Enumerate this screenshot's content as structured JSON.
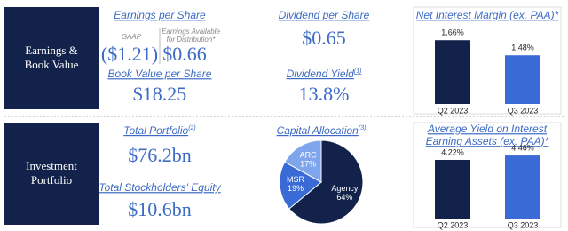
{
  "sections": [
    {
      "lines": [
        "Earnings &",
        "Book Value"
      ]
    },
    {
      "lines": [
        "Investment",
        "Portfolio"
      ]
    }
  ],
  "earnings_per_share": {
    "title": "Earnings per Share",
    "gaap_label": "GAAP",
    "gaap_value": "($1.21)",
    "ead_label": [
      "Earnings Available",
      "for Distribution*"
    ],
    "ead_value": "$0.66"
  },
  "book_value": {
    "title": "Book Value per Share",
    "value": "$18.25"
  },
  "dividend": {
    "title": "Dividend per Share",
    "value": "$0.65"
  },
  "dividend_yield": {
    "title": "Dividend Yield",
    "note": "(1)",
    "value": "13.8%"
  },
  "total_portfolio": {
    "title": "Total Portfolio",
    "note": "(2)",
    "value": "$76.2bn"
  },
  "equity": {
    "title": "Total Stockholders' Equity",
    "value": "$10.6bn"
  },
  "charts": [
    {
      "type": "bar",
      "title": [
        "Net Interest Margin (ex. PAA)*"
      ],
      "categories": [
        "Q2 2023",
        "Q3 2023"
      ],
      "values": [
        1.66,
        1.48
      ],
      "value_labels": [
        "1.66%",
        "1.48%"
      ],
      "colors": [
        "#13224a",
        "#3a6ad6"
      ],
      "ylim": [
        0.9,
        1.8
      ]
    },
    {
      "type": "pie",
      "title": "Capital Allocation",
      "note": "(3)",
      "categories": [
        "Agency",
        "MSR",
        "ARC"
      ],
      "values": [
        64,
        19,
        17
      ],
      "value_labels": [
        "64%",
        "19%",
        "17%"
      ],
      "colors": [
        "#13224a",
        "#3a6ad6",
        "#7fa6ec"
      ]
    },
    {
      "type": "bar",
      "title": [
        "Average Yield on Interest",
        "Earning Assets (ex. PAA)*"
      ],
      "categories": [
        "Q2 2023",
        "Q3 2023"
      ],
      "values": [
        4.22,
        4.46
      ],
      "value_labels": [
        "4.22%",
        "4.46%"
      ],
      "colors": [
        "#13224a",
        "#3a6ad6"
      ],
      "ylim": [
        1,
        5
      ]
    }
  ]
}
